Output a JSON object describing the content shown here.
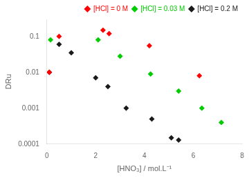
{
  "chart_data": {
    "type": "scatter",
    "xlabel": "[HNO₃] / mol.L⁻¹",
    "ylabel": "DRu",
    "log": "y",
    "xlim": [
      0,
      8
    ],
    "ylim": [
      0.0001,
      0.3
    ],
    "xticks": [
      0,
      2,
      4,
      6,
      8
    ],
    "yticks": [
      0.0001,
      0.001,
      0.01,
      0.1
    ],
    "grid": false,
    "legend": "upper right",
    "marker": "diamond",
    "series": [
      {
        "name": "[HCl] = 0 M",
        "color": "#ff0000",
        "x": [
          0.1,
          0.5,
          2.3,
          2.55,
          4.2,
          6.25
        ],
        "values": [
          0.01,
          0.1,
          0.15,
          0.12,
          0.055,
          0.008
        ]
      },
      {
        "name": "[HCl] = 0.03 M",
        "color": "#00cc00",
        "x": [
          0.15,
          2.1,
          3.0,
          4.25,
          5.4,
          6.35,
          7.15
        ],
        "values": [
          0.08,
          0.08,
          0.028,
          0.009,
          0.003,
          0.001,
          0.0004
        ]
      },
      {
        "name": "[HCl] = 0.2 M",
        "color": "#1a1a1a",
        "x": [
          0.1,
          0.5,
          1.0,
          2.0,
          2.5,
          3.25,
          4.3,
          5.1,
          5.4
        ],
        "values": [
          0.01,
          0.06,
          0.035,
          0.007,
          0.004,
          0.001,
          0.0005,
          0.00015,
          0.00013
        ]
      }
    ]
  }
}
